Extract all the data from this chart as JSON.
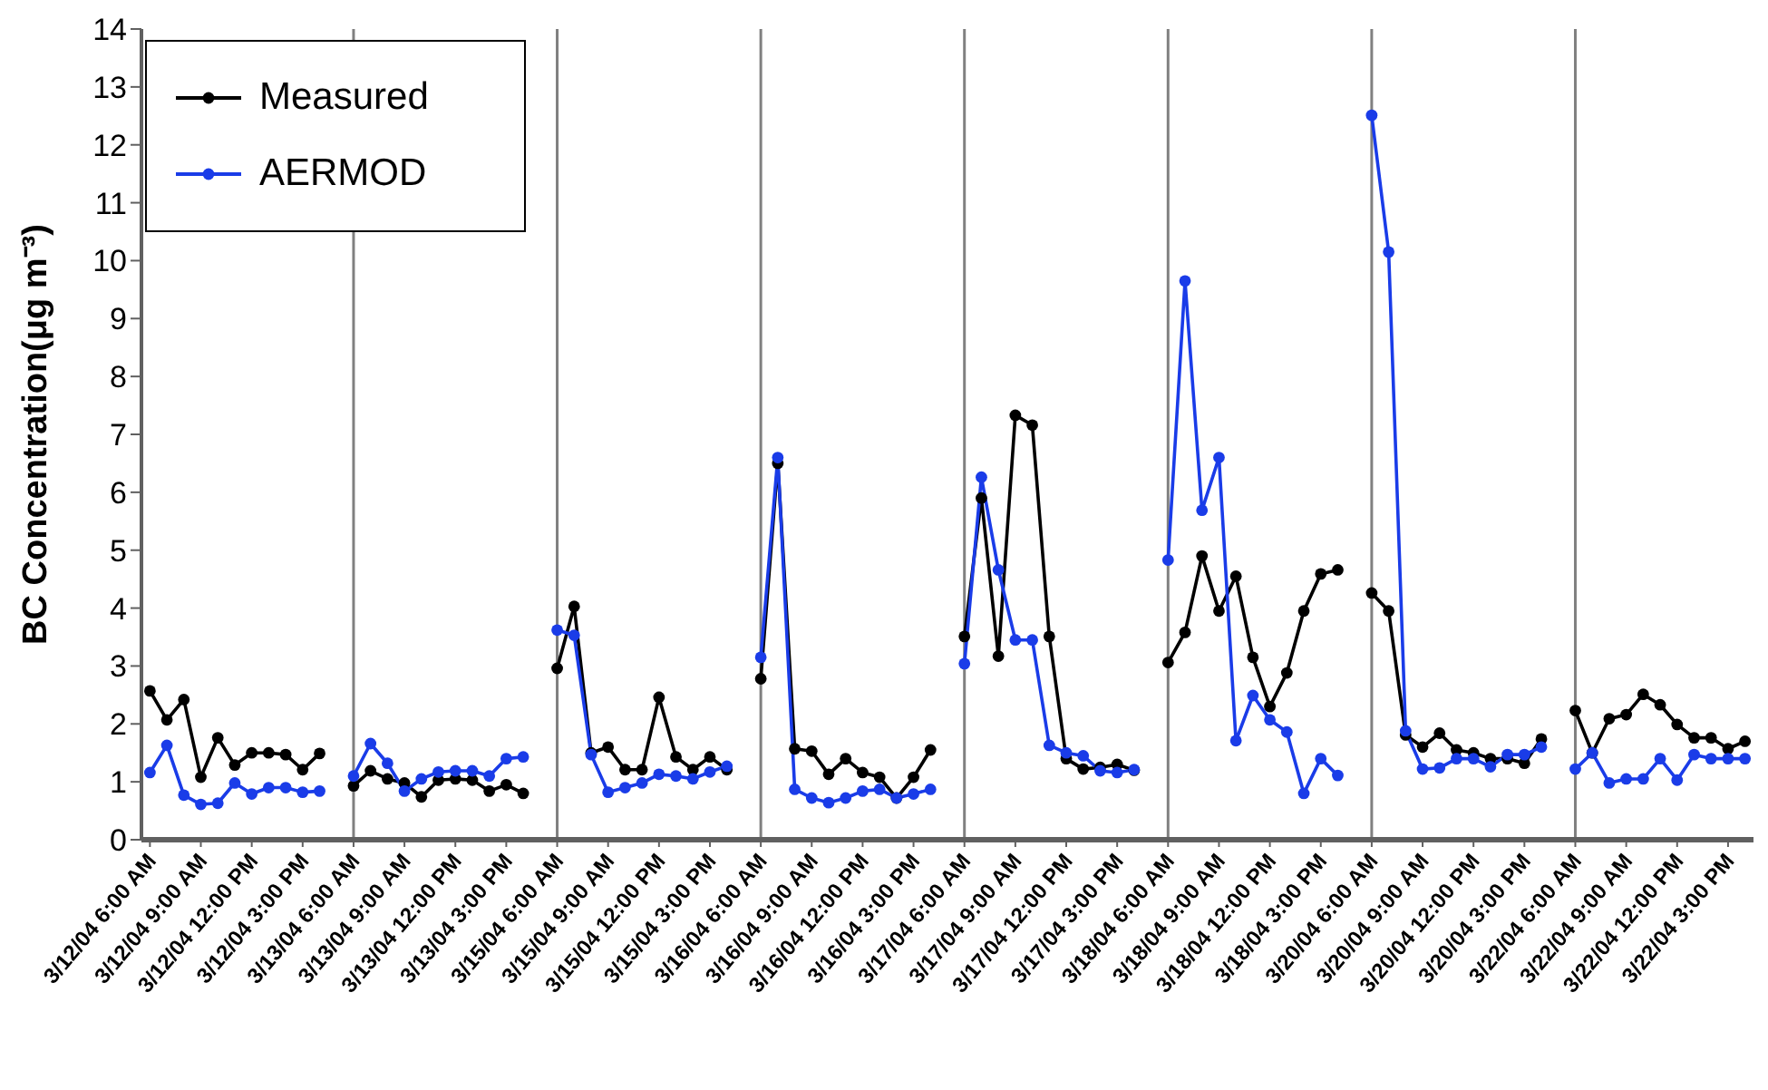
{
  "chart_data": {
    "type": "line",
    "ylabel": "BC Concentration(μg m⁻³)",
    "categories": [
      "3/12/04 6:00 AM",
      null,
      null,
      "3/12/04 9:00 AM",
      null,
      null,
      "3/12/04 12:00 PM",
      null,
      null,
      "3/12/04 3:00 PM",
      null,
      null,
      "3/13/04 6:00 AM",
      null,
      null,
      "3/13/04 9:00 AM",
      null,
      null,
      "3/13/04 12:00 PM",
      null,
      null,
      "3/13/04 3:00 PM",
      null,
      null,
      "3/15/04 6:00 AM",
      null,
      null,
      "3/15/04 9:00 AM",
      null,
      null,
      "3/15/04 12:00 PM",
      null,
      null,
      "3/15/04 3:00 PM",
      null,
      null,
      "3/16/04 6:00 AM",
      null,
      null,
      "3/16/04 9:00 AM",
      null,
      null,
      "3/16/04 12:00 PM",
      null,
      null,
      "3/16/04 3:00 PM",
      null,
      null,
      "3/17/04 6:00 AM",
      null,
      null,
      "3/17/04 9:00 AM",
      null,
      null,
      "3/17/04 12:00 PM",
      null,
      null,
      "3/17/04 3:00 PM",
      null,
      null,
      "3/18/04 6:00 AM",
      null,
      null,
      "3/18/04 9:00 AM",
      null,
      null,
      "3/18/04 12:00 PM",
      null,
      null,
      "3/18/04 3:00 PM",
      null,
      null,
      "3/20/04 6:00 AM",
      null,
      null,
      "3/20/04 9:00 AM",
      null,
      null,
      "3/20/04 12:00 PM",
      null,
      null,
      "3/20/04 3:00 PM",
      null,
      null,
      "3/22/04 6:00 AM",
      null,
      null,
      "3/22/04 9:00 AM",
      null,
      null,
      "3/22/04 12:00 PM",
      null,
      null,
      "3/22/04 3:00 PM",
      null
    ],
    "series": [
      {
        "name": "Measured",
        "color": "#000000",
        "values": [
          2.57,
          2.07,
          2.42,
          1.08,
          1.76,
          1.29,
          1.5,
          1.5,
          1.47,
          1.21,
          1.49,
          null,
          0.93,
          1.19,
          1.05,
          0.98,
          0.74,
          1.03,
          1.05,
          1.03,
          0.84,
          0.95,
          0.8,
          null,
          2.96,
          4.03,
          1.5,
          1.6,
          1.21,
          1.21,
          2.46,
          1.43,
          1.21,
          1.43,
          1.21,
          null,
          2.78,
          6.5,
          1.57,
          1.53,
          1.13,
          1.4,
          1.16,
          1.08,
          0.72,
          1.08,
          1.55,
          null,
          3.51,
          5.9,
          3.17,
          7.33,
          7.16,
          3.51,
          1.4,
          1.22,
          1.25,
          1.3,
          1.2,
          null,
          3.06,
          3.58,
          4.9,
          3.95,
          4.55,
          3.15,
          2.3,
          2.88,
          3.95,
          4.59,
          4.66,
          null,
          4.26,
          3.95,
          1.81,
          1.6,
          1.84,
          1.55,
          1.5,
          1.4,
          1.4,
          1.32,
          1.74,
          null,
          2.23,
          1.5,
          2.09,
          2.16,
          2.51,
          2.33,
          1.99,
          1.76,
          1.76,
          1.57,
          1.7
        ]
      },
      {
        "name": "AERMOD",
        "color": "#1a3ce8",
        "values": [
          1.16,
          1.63,
          0.77,
          0.61,
          0.63,
          0.98,
          0.79,
          0.9,
          0.9,
          0.82,
          0.84,
          null,
          1.1,
          1.66,
          1.32,
          0.84,
          1.05,
          1.17,
          1.19,
          1.19,
          1.1,
          1.4,
          1.43,
          null,
          3.62,
          3.53,
          1.47,
          0.82,
          0.9,
          0.98,
          1.13,
          1.1,
          1.05,
          1.17,
          1.27,
          null,
          3.15,
          6.6,
          0.87,
          0.72,
          0.64,
          0.72,
          0.84,
          0.87,
          0.72,
          0.79,
          0.87,
          null,
          3.04,
          6.26,
          4.66,
          3.45,
          3.45,
          1.63,
          1.5,
          1.45,
          1.19,
          1.16,
          1.21,
          null,
          4.83,
          9.65,
          5.69,
          6.6,
          1.71,
          2.49,
          2.07,
          1.86,
          0.8,
          1.4,
          1.11,
          null,
          12.51,
          10.15,
          1.88,
          1.22,
          1.24,
          1.4,
          1.4,
          1.26,
          1.47,
          1.47,
          1.6,
          null,
          1.22,
          1.5,
          0.98,
          1.05,
          1.05,
          1.4,
          1.03,
          1.47,
          1.4,
          1.4,
          1.4
        ]
      }
    ],
    "ylim": [
      0,
      14
    ],
    "yticks": [
      0,
      1,
      2,
      3,
      4,
      5,
      6,
      7,
      8,
      9,
      10,
      11,
      12,
      13,
      14
    ],
    "ref_lines": [
      {
        "axis": "x",
        "value": "3/13/04 6:00 AM",
        "color": "#808080"
      },
      {
        "axis": "x",
        "value": "3/15/04 6:00 AM",
        "color": "#808080"
      },
      {
        "axis": "x",
        "value": "3/16/04 6:00 AM",
        "color": "#808080"
      },
      {
        "axis": "x",
        "value": "3/17/04 6:00 AM",
        "color": "#808080"
      },
      {
        "axis": "x",
        "value": "3/18/04 6:00 AM",
        "color": "#808080"
      },
      {
        "axis": "x",
        "value": "3/20/04 6:00 AM",
        "color": "#808080"
      },
      {
        "axis": "x",
        "value": "3/22/04 6:00 AM",
        "color": "#808080"
      }
    ],
    "grid": false,
    "legend": "top left",
    "marker": "circle",
    "line_style": "solid"
  }
}
